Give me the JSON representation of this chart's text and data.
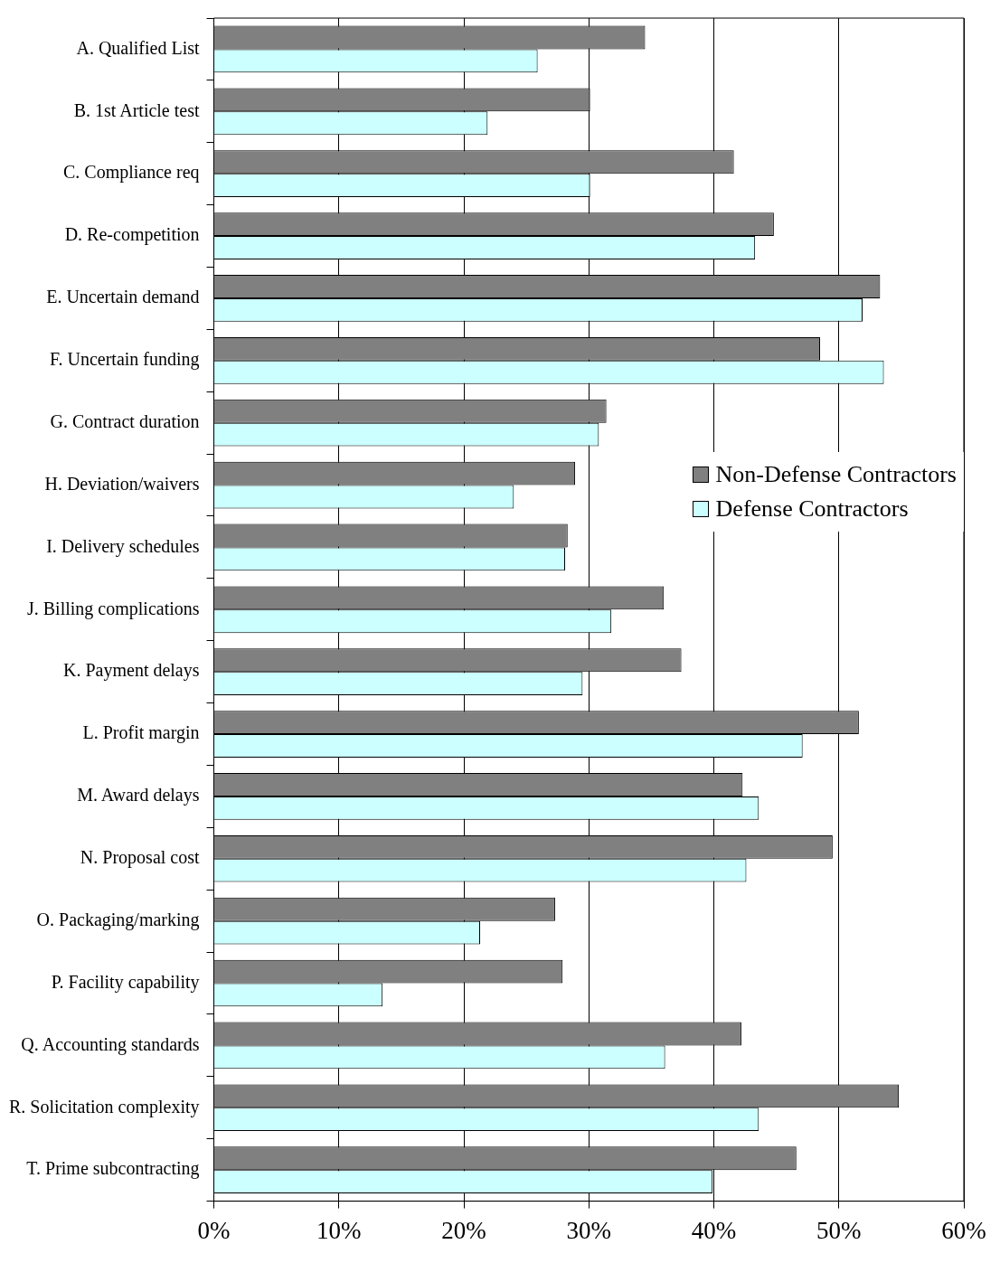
{
  "chart_data": {
    "type": "bar",
    "orientation": "horizontal",
    "categories": [
      "A. Qualified List",
      "B. 1st Article test",
      "C. Compliance req",
      "D. Re-competition",
      "E. Uncertain demand",
      "F. Uncertain funding",
      "G. Contract duration",
      "H. Deviation/waivers",
      "I. Delivery schedules",
      "J. Billing complications",
      "K. Payment delays",
      "L. Profit margin",
      "M. Award delays",
      "N. Proposal cost",
      "O. Packaging/marking",
      "P. Facility capability",
      "Q. Accounting standards",
      "R. Solicitation complexity",
      "T. Prime subcontracting"
    ],
    "series": [
      {
        "name": "Non-Defense Contractors",
        "color": "#808080",
        "values": [
          34.5,
          30.1,
          41.6,
          44.8,
          53.3,
          48.5,
          31.4,
          28.9,
          28.3,
          36.0,
          37.4,
          51.6,
          42.3,
          49.5,
          27.3,
          27.9,
          42.2,
          54.8,
          46.6
        ]
      },
      {
        "name": "Defense Contractors",
        "color": "#ccffff",
        "values": [
          25.9,
          21.9,
          30.1,
          43.3,
          51.9,
          53.6,
          30.8,
          24.0,
          28.1,
          31.8,
          29.5,
          47.1,
          43.6,
          42.6,
          21.3,
          13.5,
          36.1,
          43.6,
          39.9
        ]
      }
    ],
    "xlim": [
      0,
      60
    ],
    "xticks": [
      {
        "value": 0,
        "label": "0%"
      },
      {
        "value": 10,
        "label": "10%"
      },
      {
        "value": 20,
        "label": "20%"
      },
      {
        "value": 30,
        "label": "30%"
      },
      {
        "value": 40,
        "label": "40%"
      },
      {
        "value": 50,
        "label": "50%"
      },
      {
        "value": 60,
        "label": "60%"
      }
    ],
    "grid": "x",
    "legend": "right"
  }
}
